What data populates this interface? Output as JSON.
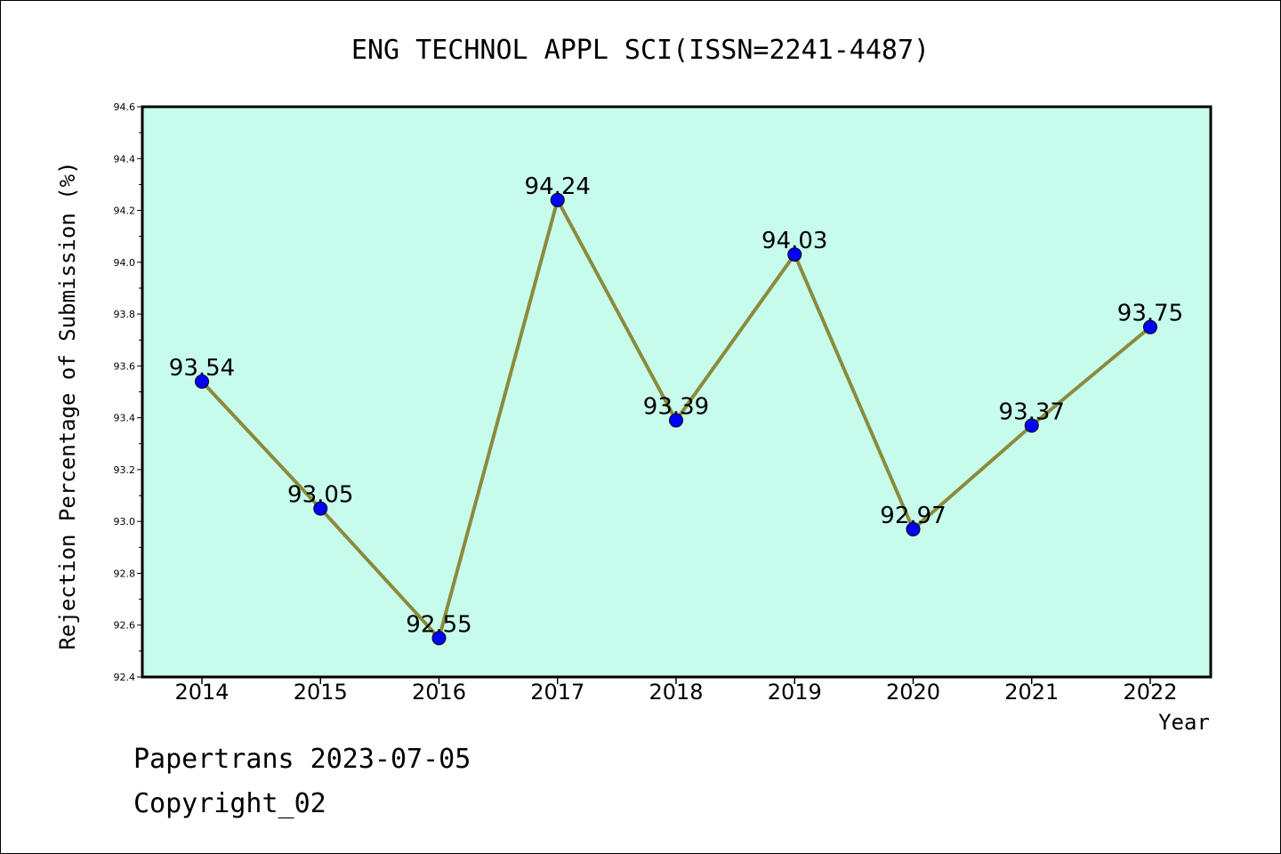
{
  "chart_data": {
    "type": "line",
    "title": "ENG TECHNOL APPL SCI(ISSN=2241-4487)",
    "xlabel": "Year",
    "ylabel": "Rejection Percentage of Submission (%)",
    "categories": [
      "2014",
      "2015",
      "2016",
      "2017",
      "2018",
      "2019",
      "2020",
      "2021",
      "2022"
    ],
    "values": [
      93.54,
      93.05,
      92.55,
      94.24,
      93.39,
      94.03,
      92.97,
      93.37,
      93.75
    ],
    "data_labels": [
      "93.54",
      "93.05",
      "92.55",
      "94.24",
      "93.39",
      "94.03",
      "92.97",
      "93.37",
      "93.75"
    ],
    "ylim": [
      92.4,
      94.6
    ],
    "yticks": [
      "92.4",
      "92.6",
      "92.8",
      "93.0",
      "93.2",
      "93.4",
      "93.6",
      "93.8",
      "94.0",
      "94.2",
      "94.4",
      "94.6"
    ],
    "grid": false,
    "legend": "none",
    "colors": {
      "plot_background": "#c7fcec",
      "line": "#8b8b3c",
      "marker": "#0000ff"
    }
  },
  "footer": {
    "source": "Papertrans 2023-07-05",
    "copyright": "Copyright_02"
  }
}
